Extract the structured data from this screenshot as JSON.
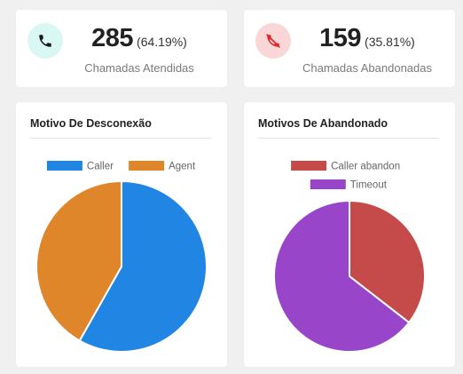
{
  "stats": [
    {
      "value": "285",
      "percent": "(64.19%)",
      "label": "Chamadas Atendidas",
      "icon": "phone-icon",
      "icon_color": "#1a1a1a",
      "icon_bg": "#d9f7f3"
    },
    {
      "value": "159",
      "percent": "(35.81%)",
      "label": "Chamadas Abandonadas",
      "icon": "missed-call-icon",
      "icon_color": "#e02828",
      "icon_bg": "#fbd6d6"
    }
  ],
  "chart_data": [
    {
      "type": "pie",
      "title": "Motivo De Desconexão",
      "series": [
        {
          "name": "Caller",
          "value": 58.2,
          "color": "#2085e3"
        },
        {
          "name": "Agent",
          "value": 41.8,
          "color": "#e0862a"
        }
      ],
      "legend": "top"
    },
    {
      "type": "pie",
      "title": "Motivos De Abandonado",
      "series": [
        {
          "name": "Caller abandon",
          "value": 35.5,
          "color": "#c54a4a"
        },
        {
          "name": "Timeout",
          "value": 64.5,
          "color": "#9845c9"
        }
      ],
      "legend": "top"
    }
  ]
}
